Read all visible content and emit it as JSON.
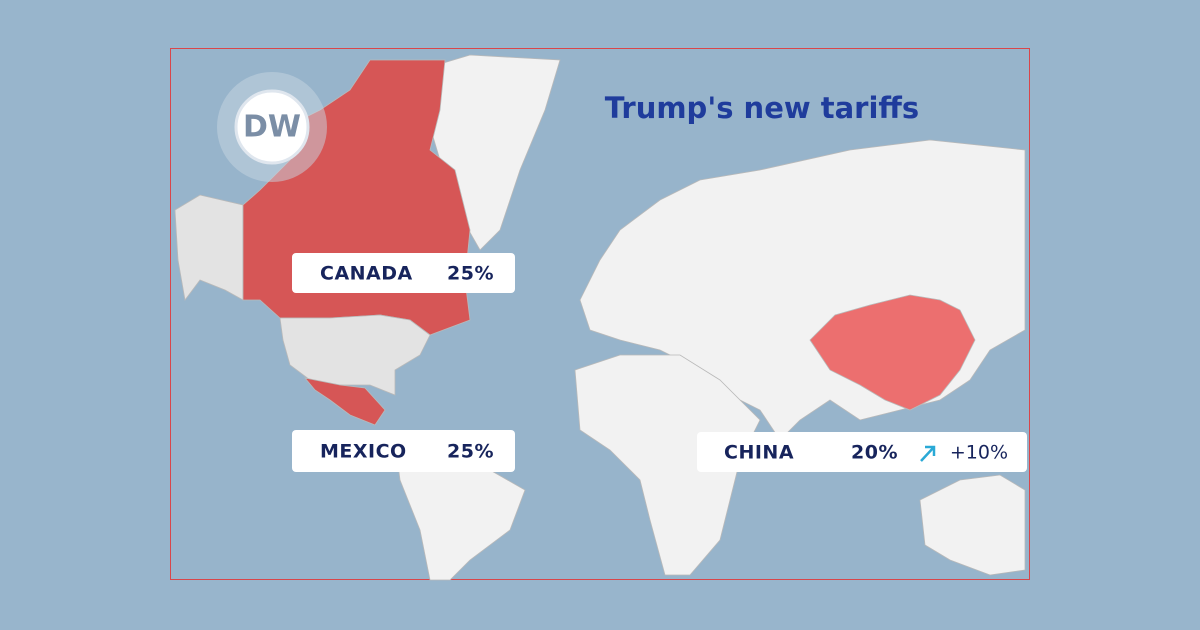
{
  "logo": "DW",
  "title": "Trump's new tariffs",
  "labels": [
    {
      "country": "CANADA",
      "tariff": "25%"
    },
    {
      "country": "MEXICO",
      "tariff": "25%"
    },
    {
      "country": "CHINA",
      "tariff": "20%",
      "change": "+10%"
    }
  ]
}
